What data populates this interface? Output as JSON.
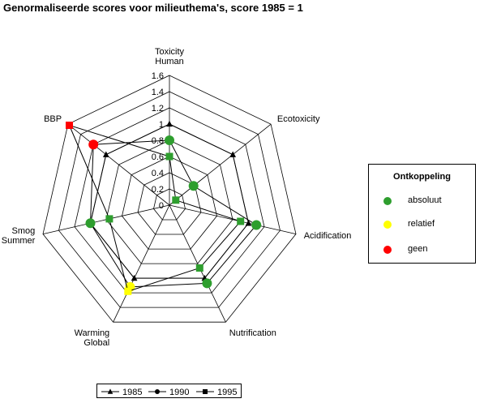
{
  "chart_data": {
    "type": "radar",
    "title": "Genormaliseerde scores voor milieuthema's, score 1985 = 1",
    "axes": [
      {
        "lines": [
          "Toxicity",
          "Human"
        ]
      },
      {
        "lines": [
          "Ecotoxicity"
        ]
      },
      {
        "lines": [
          "Acidification"
        ]
      },
      {
        "lines": [
          "Nutrification"
        ]
      },
      {
        "lines": [
          "Warming",
          "Global"
        ]
      },
      {
        "lines": [
          "Smog",
          "Summer"
        ]
      },
      {
        "lines": [
          "BBP"
        ]
      }
    ],
    "rlim": [
      0,
      1.6
    ],
    "ticks": [
      "0",
      "0.2",
      "0.4",
      "0.6",
      "0.8",
      "1",
      "1.2",
      "1.4",
      "1.6"
    ],
    "series": [
      {
        "name": "1985",
        "marker": "triangle",
        "values": [
          1,
          1,
          1,
          1,
          1,
          1,
          1
        ]
      },
      {
        "name": "1990",
        "marker": "circle",
        "values": [
          0.8,
          0.38,
          1.1,
          1.07,
          1.12,
          1.0,
          1.2
        ]
      },
      {
        "name": "1995",
        "marker": "square",
        "values": [
          0.6,
          0.1,
          0.9,
          0.86,
          1.18,
          0.76,
          1.58
        ]
      }
    ],
    "status": [
      {
        "axis": 0,
        "series": 1,
        "class": "absoluut"
      },
      {
        "axis": 0,
        "series": 2,
        "class": "absoluut"
      },
      {
        "axis": 1,
        "series": 1,
        "class": "absoluut"
      },
      {
        "axis": 1,
        "series": 2,
        "class": "absoluut"
      },
      {
        "axis": 2,
        "series": 1,
        "class": "absoluut"
      },
      {
        "axis": 2,
        "series": 2,
        "class": "absoluut"
      },
      {
        "axis": 3,
        "series": 1,
        "class": "absoluut"
      },
      {
        "axis": 3,
        "series": 2,
        "class": "absoluut"
      },
      {
        "axis": 4,
        "series": 1,
        "class": "relatief"
      },
      {
        "axis": 4,
        "series": 2,
        "class": "relatief"
      },
      {
        "axis": 5,
        "series": 1,
        "class": "absoluut"
      },
      {
        "axis": 5,
        "series": 2,
        "class": "absoluut"
      },
      {
        "axis": 6,
        "series": 1,
        "class": "geen"
      },
      {
        "axis": 6,
        "series": 2,
        "class": "geen"
      }
    ],
    "grid": true,
    "legend": "bottom"
  },
  "ontkoppeling": {
    "title": "Ontkoppeling",
    "items": [
      {
        "key": "absoluut",
        "label": "absoluut",
        "color": "#2e9e2e"
      },
      {
        "key": "relatief",
        "label": "relatief",
        "color": "#ffff00"
      },
      {
        "key": "geen",
        "label": "geen",
        "color": "#ff0000"
      }
    ]
  }
}
